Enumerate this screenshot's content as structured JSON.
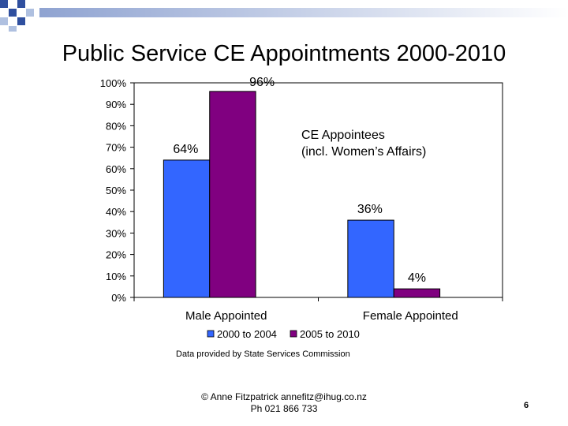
{
  "slide": {
    "title": "Public Service CE Appointments 2000-2010",
    "footer_line1": "© Anne Fitzpatrick annefitz@ihug.co.nz",
    "footer_line2": "Ph 021 866 733",
    "page_number": "6"
  },
  "chart_data": {
    "type": "bar",
    "categories": [
      "Male Appointed",
      "Female Appointed"
    ],
    "series": [
      {
        "name": "2000 to 2004",
        "values": [
          64,
          36
        ],
        "color": "#3366FF"
      },
      {
        "name": "2005 to 2010",
        "values": [
          96,
          4
        ],
        "color": "#800080"
      }
    ],
    "data_labels": [
      [
        "64%",
        "36%"
      ],
      [
        "96%",
        "4%"
      ]
    ],
    "ylim": [
      0,
      100
    ],
    "y_ticks": [
      "0%",
      "10%",
      "20%",
      "30%",
      "40%",
      "50%",
      "60%",
      "70%",
      "80%",
      "90%",
      "100%"
    ],
    "annotation": [
      "CE Appointees",
      "(incl. Women’s Affairs)"
    ],
    "source": "Data provided by State Services Commission",
    "legend_position": "bottom",
    "grid": false
  },
  "colors": {
    "deco_blue": "#3A5BA8",
    "deco_light": "#AFC0E0"
  }
}
